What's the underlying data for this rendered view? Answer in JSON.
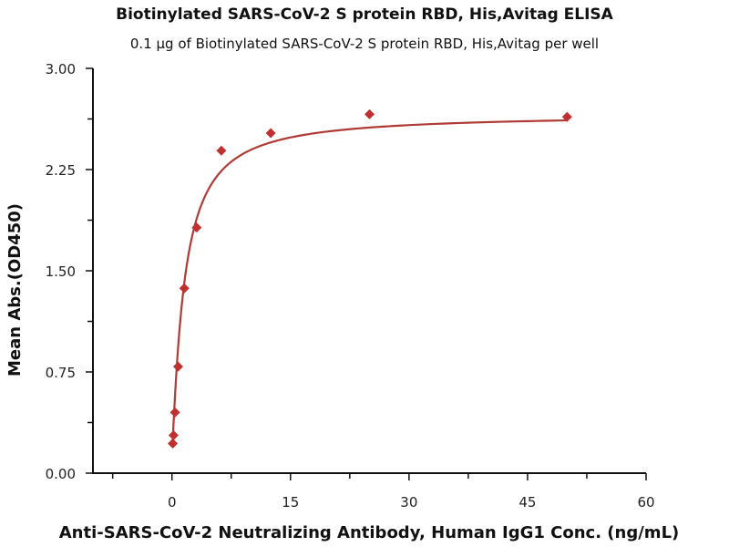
{
  "chart_data": {
    "type": "scatter",
    "title": "Biotinylated SARS-CoV-2 S protein RBD, His,Avitag ELISA",
    "subtitle": "0.1 μg of Biotinylated SARS-CoV-2 S protein RBD, His,Avitag per well",
    "xlabel": "Anti-SARS-CoV-2 Neutralizing Antibody, Human IgG1 Conc. (ng/mL)",
    "ylabel": "Mean Abs.(OD450)",
    "xlim": [
      -10,
      60
    ],
    "ylim": [
      0,
      3
    ],
    "xticks": [
      0,
      15,
      30,
      45,
      60
    ],
    "xtick_labels": [
      "0",
      "15",
      "30",
      "45",
      "60"
    ],
    "xminor": [
      -7.5,
      7.5,
      22.5,
      37.5,
      52.5
    ],
    "yticks": [
      0,
      0.75,
      1.5,
      2.25,
      3.0
    ],
    "ytick_labels": [
      "0.00",
      "0.75",
      "1.50",
      "2.25",
      "3.00"
    ],
    "yminor": [
      0.375,
      1.125,
      1.875,
      2.625
    ],
    "grid": false,
    "series": [
      {
        "name": "Mean Abs.",
        "color": "#c0302e",
        "marker": "diamond",
        "x": [
          0.098,
          0.195,
          0.39,
          0.78,
          1.5625,
          3.125,
          6.25,
          12.5,
          25,
          50
        ],
        "y": [
          0.22,
          0.28,
          0.45,
          0.79,
          1.37,
          1.82,
          2.39,
          2.52,
          2.66,
          2.64
        ]
      }
    ],
    "fit": {
      "type": "4PL",
      "bottom": 0.15,
      "top": 2.66,
      "ec50": 1.55,
      "hill": 1.15,
      "color": "#b03a36"
    }
  }
}
